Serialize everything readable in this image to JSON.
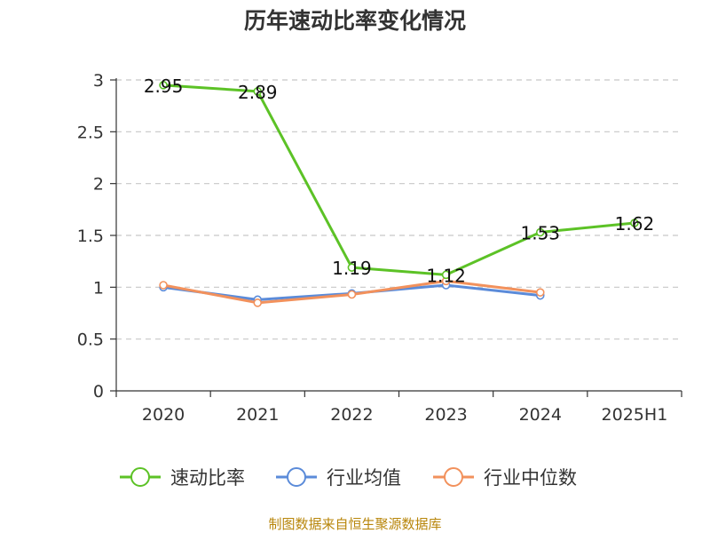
{
  "chart_data": {
    "type": "line",
    "title": "历年速动比率变化情况",
    "categories": [
      "2020",
      "2021",
      "2022",
      "2023",
      "2024",
      "2025H1"
    ],
    "ylim": [
      0,
      3
    ],
    "yticks": [
      "0",
      "0.5",
      "1",
      "1.5",
      "2",
      "2.5",
      "3"
    ],
    "yticks_values": [
      0,
      0.5,
      1,
      1.5,
      2,
      2.5,
      3
    ],
    "grid": true,
    "legend_position": "bottom",
    "series": [
      {
        "name": "速动比率",
        "color": "#5cc226",
        "values": [
          2.95,
          2.89,
          1.19,
          1.12,
          1.53,
          1.62
        ],
        "labels": [
          "2.95",
          "2.89",
          "1.19",
          "1.12",
          "1.53",
          "1.62"
        ]
      },
      {
        "name": "行业均值",
        "color": "#5b8bd9",
        "values": [
          1.0,
          0.88,
          0.94,
          1.02,
          0.92,
          null
        ]
      },
      {
        "name": "行业中位数",
        "color": "#f2915c",
        "values": [
          1.02,
          0.85,
          0.93,
          1.06,
          0.95,
          null
        ]
      }
    ],
    "source": "制图数据来自恒生聚源数据库"
  }
}
